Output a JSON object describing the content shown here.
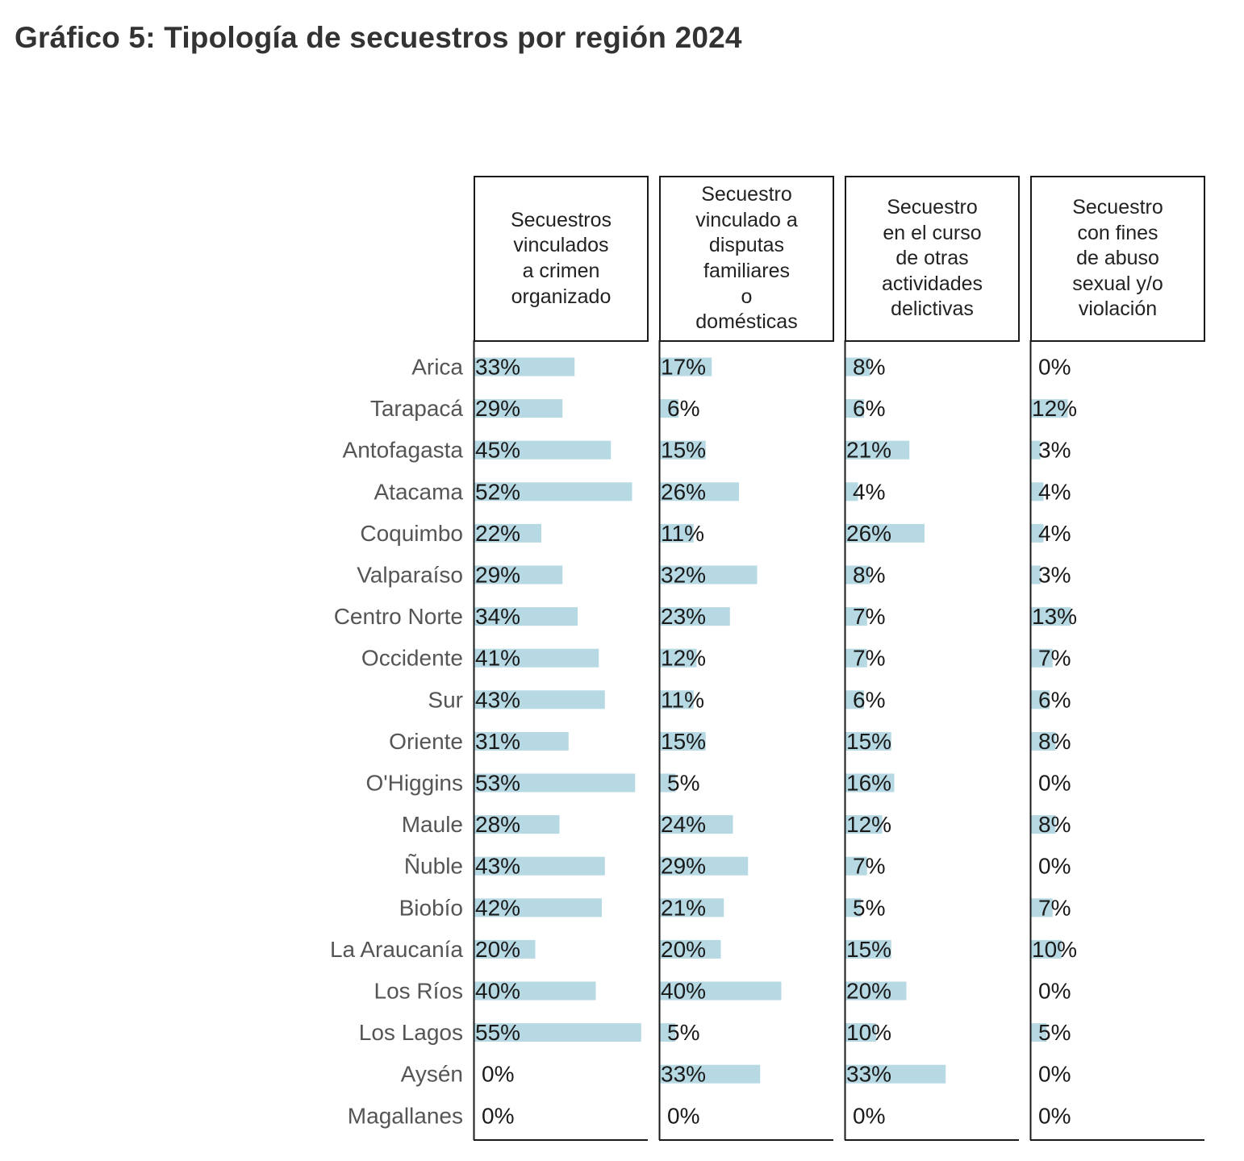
{
  "title": "Gráfico 5: Tipología de secuestros por región 2024",
  "chart_data": {
    "type": "bar",
    "orientation": "horizontal",
    "layout": "small-multiples-table",
    "title": "Gráfico 5: Tipología de secuestros por región 2024",
    "unit": "%",
    "bar_color": "#b7d9e4",
    "categories": [
      "Arica",
      "Tarapacá",
      "Antofagasta",
      "Atacama",
      "Coquimbo",
      "Valparaíso",
      "Centro Norte",
      "Occidente",
      "Sur",
      "Oriente",
      "O'Higgins",
      "Maule",
      "Ñuble",
      "Biobío",
      "La Araucanía",
      "Los Ríos",
      "Los Lagos",
      "Aysén",
      "Magallanes"
    ],
    "series": [
      {
        "name": "Secuestros vinculados a crimen organizado",
        "header_lines": [
          "Secuestros",
          "vinculados",
          "a crimen",
          "organizado"
        ],
        "values": [
          33,
          29,
          45,
          52,
          22,
          29,
          34,
          41,
          43,
          31,
          53,
          28,
          43,
          42,
          20,
          40,
          55,
          0,
          0
        ]
      },
      {
        "name": "Secuestro vinculado a disputas familiares o domésticas",
        "header_lines": [
          "Secuestro",
          "vinculado a",
          "disputas",
          "familiares",
          "o",
          "domésticas"
        ],
        "values": [
          17,
          6,
          15,
          26,
          11,
          32,
          23,
          12,
          11,
          15,
          5,
          24,
          29,
          21,
          20,
          40,
          5,
          33,
          0
        ]
      },
      {
        "name": "Secuestro en el curso de otras actividades delictivas",
        "header_lines": [
          "Secuestro",
          "en el curso",
          "de otras",
          "actividades",
          "delictivas"
        ],
        "values": [
          8,
          6,
          21,
          4,
          26,
          8,
          7,
          7,
          6,
          15,
          16,
          12,
          7,
          5,
          15,
          20,
          10,
          33,
          0
        ]
      },
      {
        "name": "Secuestro con fines de abuso sexual y/o violación",
        "header_lines": [
          "Secuestro",
          "con fines",
          "de abuso",
          "sexual y/o",
          "violación"
        ],
        "values": [
          0,
          12,
          3,
          4,
          4,
          3,
          13,
          7,
          6,
          8,
          0,
          8,
          0,
          7,
          10,
          0,
          5,
          0,
          0
        ]
      }
    ]
  }
}
